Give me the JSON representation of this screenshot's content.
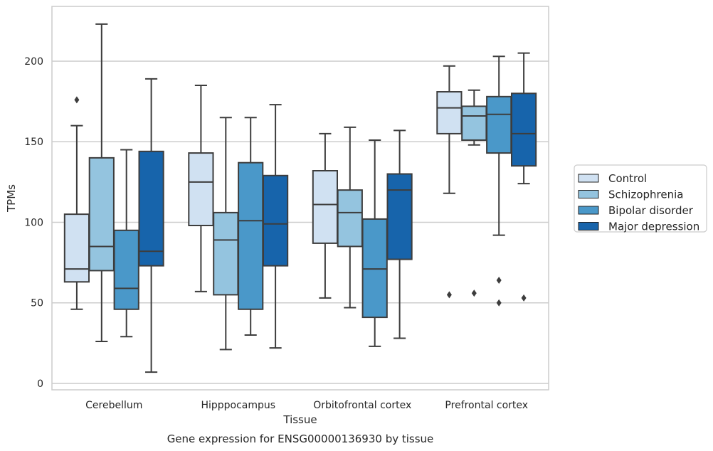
{
  "chart_data": {
    "type": "box",
    "title": "Gene expression for ENSG00000136930 by tissue",
    "xlabel": "Tissue",
    "ylabel": "TPMs",
    "ylim": [
      -4,
      234
    ],
    "yticks": [
      0,
      50,
      100,
      150,
      200
    ],
    "grid": "horizontal",
    "legend_position": "right",
    "categories": [
      "Cerebellum",
      "Hipppocampus",
      "Orbitofrontal cortex",
      "Prefrontal cortex"
    ],
    "series": [
      {
        "name": "Control",
        "color": "#d0e1f2",
        "boxes": [
          {
            "whislo": 46,
            "q1": 63,
            "med": 71,
            "q3": 105,
            "whishi": 160,
            "fliers": [
              176
            ]
          },
          {
            "whislo": 57,
            "q1": 98,
            "med": 125,
            "q3": 143,
            "whishi": 185,
            "fliers": []
          },
          {
            "whislo": 53,
            "q1": 87,
            "med": 111,
            "q3": 132,
            "whishi": 155,
            "fliers": []
          },
          {
            "whislo": 118,
            "q1": 155,
            "med": 171,
            "q3": 181,
            "whishi": 197,
            "fliers": [
              55
            ]
          }
        ]
      },
      {
        "name": "Schizophrenia",
        "color": "#94c4df",
        "boxes": [
          {
            "whislo": 26,
            "q1": 70,
            "med": 85,
            "q3": 140,
            "whishi": 223,
            "fliers": []
          },
          {
            "whislo": 21,
            "q1": 55,
            "med": 89,
            "q3": 106,
            "whishi": 165,
            "fliers": []
          },
          {
            "whislo": 47,
            "q1": 85,
            "med": 106,
            "q3": 120,
            "whishi": 159,
            "fliers": []
          },
          {
            "whislo": 148,
            "q1": 151,
            "med": 166,
            "q3": 172,
            "whishi": 182,
            "fliers": [
              56
            ]
          }
        ]
      },
      {
        "name": "Bipolar disorder",
        "color": "#4a98c9",
        "boxes": [
          {
            "whislo": 29,
            "q1": 46,
            "med": 59,
            "q3": 95,
            "whishi": 145,
            "fliers": []
          },
          {
            "whislo": 30,
            "q1": 46,
            "med": 101,
            "q3": 137,
            "whishi": 165,
            "fliers": []
          },
          {
            "whislo": 23,
            "q1": 41,
            "med": 71,
            "q3": 102,
            "whishi": 151,
            "fliers": []
          },
          {
            "whislo": 92,
            "q1": 143,
            "med": 167,
            "q3": 178,
            "whishi": 203,
            "fliers": [
              64,
              50
            ]
          }
        ]
      },
      {
        "name": "Major depression",
        "color": "#1764ab",
        "boxes": [
          {
            "whislo": 7,
            "q1": 73,
            "med": 82,
            "q3": 144,
            "whishi": 189,
            "fliers": []
          },
          {
            "whislo": 22,
            "q1": 73,
            "med": 99,
            "q3": 129,
            "whishi": 173,
            "fliers": []
          },
          {
            "whislo": 28,
            "q1": 77,
            "med": 120,
            "q3": 130,
            "whishi": 157,
            "fliers": []
          },
          {
            "whislo": 124,
            "q1": 135,
            "med": 155,
            "q3": 180,
            "whishi": 205,
            "fliers": [
              53
            ]
          }
        ]
      }
    ]
  }
}
